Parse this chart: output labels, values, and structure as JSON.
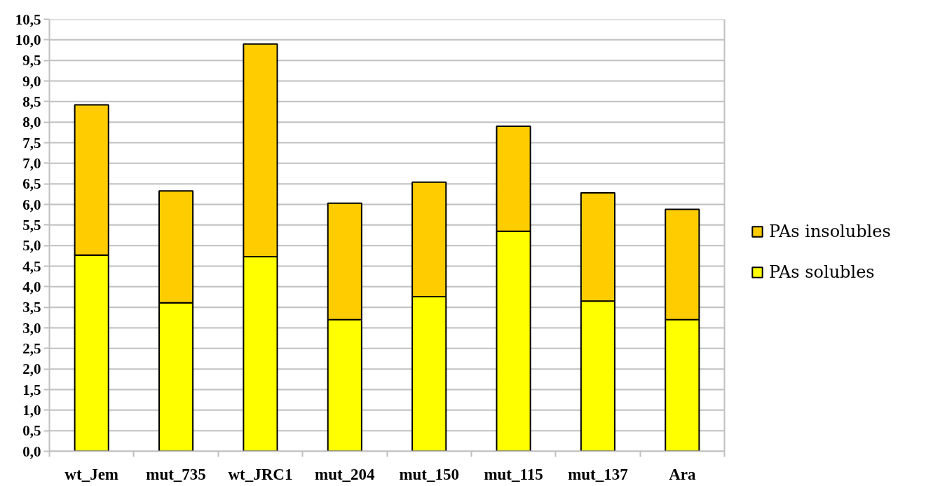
{
  "chart_data": {
    "type": "bar",
    "stacked": true,
    "categories": [
      "wt_Jem",
      "mut_735",
      "wt_JRC1",
      "mut_204",
      "mut_150",
      "mut_115",
      "mut_137",
      "Ara"
    ],
    "series": [
      {
        "name": "PAs solubles",
        "color": "#ffff00",
        "values": [
          4.77,
          3.61,
          4.73,
          3.2,
          3.76,
          5.35,
          3.65,
          3.2
        ]
      },
      {
        "name": "PAs insolubles",
        "color": "#ffcc00",
        "values": [
          3.65,
          2.72,
          5.17,
          2.83,
          2.78,
          2.55,
          2.63,
          2.68
        ]
      }
    ],
    "ylim": [
      0,
      10.5
    ],
    "yticks": [
      {
        "value": 0,
        "label": "0,0"
      },
      {
        "value": 0.5,
        "label": "0,5"
      },
      {
        "value": 1,
        "label": "1,0"
      },
      {
        "value": 1.5,
        "label": "1,5"
      },
      {
        "value": 2,
        "label": "2,0"
      },
      {
        "value": 2.5,
        "label": "2,5"
      },
      {
        "value": 3,
        "label": "3,0"
      },
      {
        "value": 3.5,
        "label": "3,5"
      },
      {
        "value": 4,
        "label": "4,0"
      },
      {
        "value": 4.5,
        "label": "4,5"
      },
      {
        "value": 5,
        "label": "5,0"
      },
      {
        "value": 5.5,
        "label": "5,5"
      },
      {
        "value": 6,
        "label": "6,0"
      },
      {
        "value": 6.5,
        "label": "6,5"
      },
      {
        "value": 7,
        "label": "7,0"
      },
      {
        "value": 7.5,
        "label": "7,5"
      },
      {
        "value": 8,
        "label": "8,0"
      },
      {
        "value": 8.5,
        "label": "8,5"
      },
      {
        "value": 9,
        "label": "9,0"
      },
      {
        "value": 9.5,
        "label": "9,5"
      },
      {
        "value": 10,
        "label": "10,0"
      },
      {
        "value": 10.5,
        "label": "10,5"
      }
    ],
    "grid": "y",
    "legend": "right"
  }
}
